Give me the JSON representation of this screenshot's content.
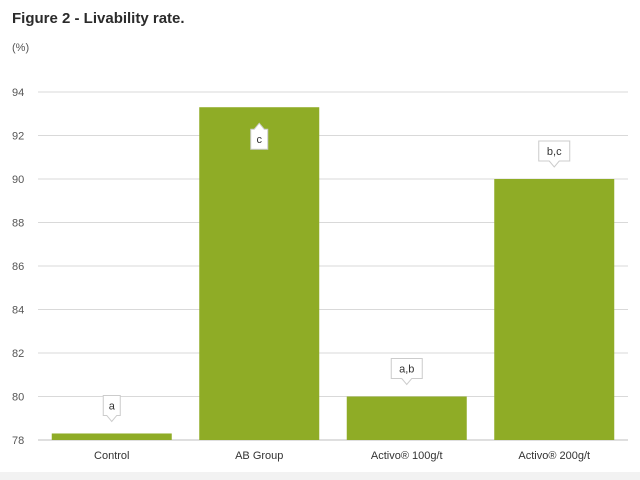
{
  "title": "Figure 2 - Livability rate.",
  "unit_label": "(%)",
  "chart_data": {
    "type": "bar",
    "title": "Figure 2 - Livability rate.",
    "ylabel": "(%)",
    "xlabel": "",
    "categories": [
      "Control",
      "AB Group",
      "Activo® 100g/t",
      "Activo® 200g/t"
    ],
    "values": [
      78.3,
      93.3,
      80.0,
      90.0
    ],
    "annotations": [
      "a",
      "c",
      "a,b",
      "b,c"
    ],
    "ylim": [
      78,
      94
    ],
    "yticks": [
      78,
      80,
      82,
      84,
      86,
      88,
      90,
      92,
      94
    ],
    "grid": true,
    "legend": "none",
    "bar_color": "#8fac26",
    "grid_color": "#d9d9d9"
  }
}
